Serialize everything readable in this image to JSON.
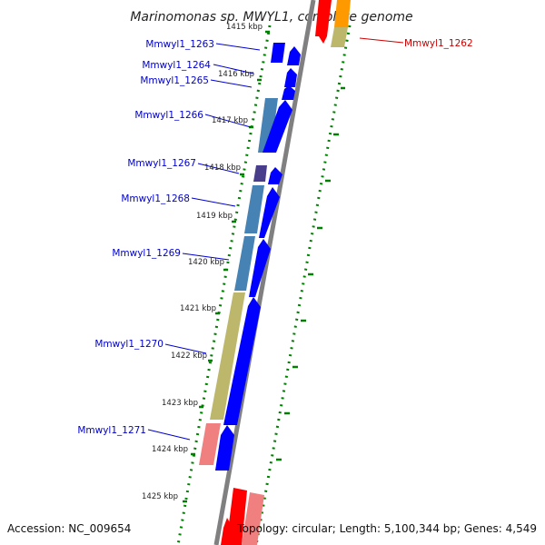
{
  "title": "Marinomonas sp. MWYL1, complete genome",
  "footer": {
    "accession": "Accession: NC_009654",
    "topology": "Topology: circular; Length: 5,100,344 bp; Genes: 4,549"
  },
  "colors": {
    "backbone": "#808080",
    "forward_cds": "#0000ff",
    "label_blue": "#0000cc",
    "label_red": "#cc0000",
    "tick_green": "#008000",
    "steelblue": "#4682b4",
    "khaki": "#bdb76b",
    "salmon": "#f08080",
    "red": "#ff0000",
    "orange": "#ff9900",
    "slate": "#483d8b"
  },
  "gene_labels": [
    {
      "text": "Mmwyl1_1262",
      "color": "red"
    },
    {
      "text": "Mmwyl1_1263",
      "color": "blue"
    },
    {
      "text": "Mmwyl1_1264",
      "color": "blue"
    },
    {
      "text": "Mmwyl1_1265",
      "color": "blue"
    },
    {
      "text": "Mmwyl1_1266",
      "color": "blue"
    },
    {
      "text": "Mmwyl1_1267",
      "color": "blue"
    },
    {
      "text": "Mmwyl1_1268",
      "color": "blue"
    },
    {
      "text": "Mmwyl1_1269",
      "color": "blue"
    },
    {
      "text": "Mmwyl1_1270",
      "color": "blue"
    },
    {
      "text": "Mmwyl1_1271",
      "color": "blue"
    }
  ],
  "ticks": [
    "1415 kbp",
    "1416 kbp",
    "1417 kbp",
    "1418 kbp",
    "1419 kbp",
    "1420 kbp",
    "1421 kbp",
    "1422 kbp",
    "1423 kbp",
    "1424 kbp",
    "1425 kbp"
  ]
}
